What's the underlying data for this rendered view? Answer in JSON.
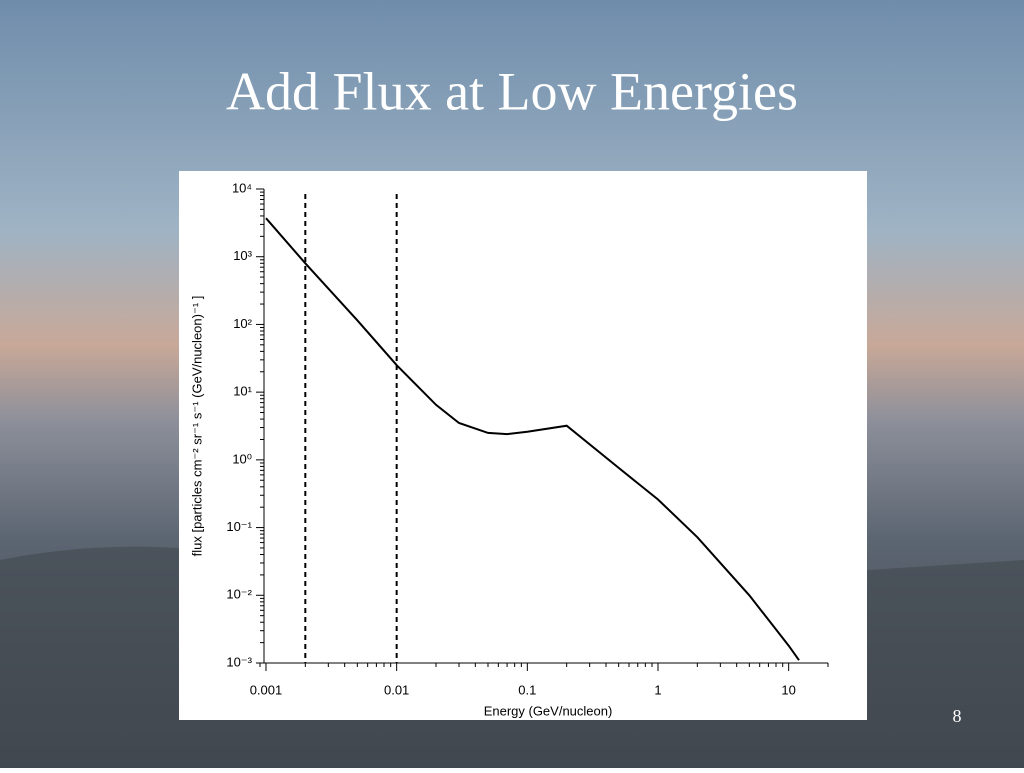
{
  "page_number": 8,
  "chart_data": {
    "type": "line",
    "title": "Add Flux at Low Energies",
    "x_label": "Energy (GeV/nucleon)",
    "y_label": "flux [particles cm⁻² sr⁻¹ s⁻¹ (GeV/nucleon)⁻¹ ]",
    "x_log": true,
    "y_log": true,
    "xlim": [
      0.0009,
      20
    ],
    "ylim": [
      0.001,
      10000
    ],
    "xticks": [
      0.001,
      0.01,
      0.1,
      1,
      10
    ],
    "yticks": [
      {
        "value": 0.001,
        "label": "10⁻³"
      },
      {
        "value": 0.01,
        "label": "10⁻²"
      },
      {
        "value": 0.1,
        "label": "10⁻¹"
      },
      {
        "value": 1,
        "label": "10⁰"
      },
      {
        "value": 10,
        "label": "10¹"
      },
      {
        "value": 100,
        "label": "10²"
      },
      {
        "value": 1000,
        "label": "10³"
      },
      {
        "value": 10000,
        "label": "10⁴"
      }
    ],
    "vlines": [
      0.002,
      0.01
    ],
    "x": [
      0.001,
      0.002,
      0.005,
      0.01,
      0.02,
      0.03,
      0.05,
      0.07,
      0.1,
      0.2,
      0.5,
      1,
      2,
      5,
      10,
      12
    ],
    "series": [
      {
        "name": "flux",
        "color": "#000000",
        "values": [
          3700,
          800,
          115,
          25,
          6.5,
          3.5,
          2.5,
          2.4,
          2.6,
          3.2,
          0.76,
          0.26,
          0.072,
          0.01,
          0.0018,
          0.0011
        ]
      }
    ]
  }
}
